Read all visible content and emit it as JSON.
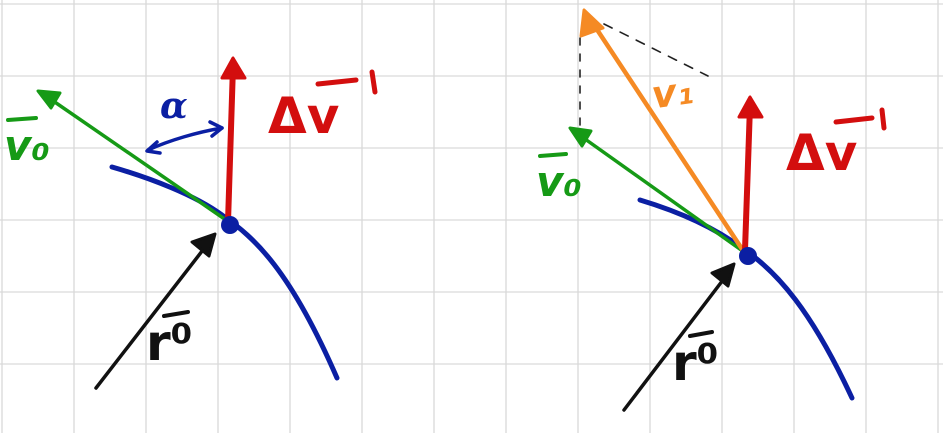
{
  "diagrams": [
    {
      "labels": {
        "velocity": "v₀",
        "delta_v": "Δv",
        "angle": "α",
        "radius": "r⁰"
      }
    },
    {
      "labels": {
        "velocity": "v₀",
        "new_velocity": "v₁",
        "delta_v": "Δv",
        "radius": "r⁰"
      }
    }
  ],
  "colors": {
    "grid": "#d9d9d9",
    "orbit": "#0b1fa3",
    "velocity": "#169a16",
    "delta_v": "#d30e0e",
    "new_velocity": "#f58a24",
    "radius": "#111111",
    "angle": "#0b1fa3"
  }
}
